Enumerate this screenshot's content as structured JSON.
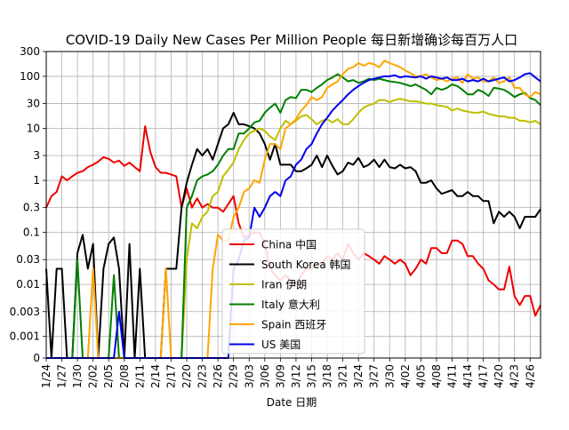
{
  "chart_data": {
    "type": "line",
    "title": "COVID-19 Daily New Cases Per Million People 每日新增确诊每百万人口",
    "xlabel": "Date 日期",
    "ylabel": "",
    "y_scale": "log (symlog near 0)",
    "ylim": [
      0,
      300
    ],
    "y_ticks": [
      0,
      0.001,
      0.003,
      0.01,
      0.03,
      0.1,
      0.3,
      1,
      3,
      10,
      30,
      100,
      300
    ],
    "y_tick_labels": [
      "0",
      "0.001",
      "0.003",
      "0.01",
      "0.03",
      "0.1",
      "0.3",
      "1",
      "3",
      "10",
      "30",
      "100",
      "300"
    ],
    "x_start": "1/24",
    "x_end": "4/28",
    "x_ticks": [
      "1/24",
      "1/27",
      "1/30",
      "2/02",
      "2/05",
      "2/08",
      "2/11",
      "2/14",
      "2/17",
      "2/20",
      "2/23",
      "2/26",
      "2/29",
      "3/03",
      "3/06",
      "3/09",
      "3/12",
      "3/15",
      "3/18",
      "3/21",
      "3/24",
      "3/27",
      "3/30",
      "4/02",
      "4/05",
      "4/08",
      "4/11",
      "4/14",
      "4/17",
      "4/20",
      "4/23",
      "4/26"
    ],
    "grid": true,
    "legend_position": "lower-center",
    "series": [
      {
        "name": "China 中国",
        "color": "#ee0000",
        "values": [
          0.3,
          0.5,
          0.6,
          1.2,
          1.0,
          1.2,
          1.4,
          1.5,
          1.8,
          2.0,
          2.3,
          2.8,
          2.6,
          2.2,
          2.4,
          1.9,
          2.2,
          1.8,
          1.5,
          11,
          3.5,
          1.8,
          1.4,
          1.4,
          1.3,
          1.2,
          0.3,
          0.7,
          0.3,
          0.45,
          0.3,
          0.35,
          0.3,
          0.3,
          0.25,
          0.35,
          0.5,
          0.15,
          0.08,
          0.09,
          0.1,
          0.1,
          0.06,
          0.02,
          0.015,
          0.012,
          0.015,
          0.012,
          0.01,
          0.015,
          0.02,
          0.02,
          0.025,
          0.025,
          0.035,
          0.03,
          0.04,
          0.03,
          0.06,
          0.04,
          0.03,
          0.04,
          0.035,
          0.03,
          0.025,
          0.035,
          0.03,
          0.025,
          0.03,
          0.025,
          0.015,
          0.02,
          0.03,
          0.025,
          0.05,
          0.05,
          0.04,
          0.04,
          0.07,
          0.07,
          0.06,
          0.035,
          0.035,
          0.025,
          0.02,
          0.012,
          0.01,
          0.008,
          0.008,
          0.022,
          0.006,
          0.004,
          0.006,
          0.006,
          0.0025,
          0.004
        ]
      },
      {
        "name": "South Korea 韩国",
        "color": "#000000",
        "values": [
          0.02,
          0,
          0.02,
          0.02,
          0,
          0,
          0.04,
          0.09,
          0.02,
          0.06,
          0,
          0.02,
          0.06,
          0.08,
          0.02,
          0,
          0.06,
          0,
          0.02,
          0,
          0,
          0,
          0,
          0.02,
          0.02,
          0.02,
          0.3,
          0.9,
          2,
          4,
          3,
          4,
          2.5,
          5,
          10,
          12,
          20,
          12,
          12,
          11,
          10,
          8,
          5,
          2.5,
          5,
          2,
          2,
          2,
          1.5,
          1.5,
          1.7,
          2,
          3,
          1.8,
          3,
          1.9,
          1.3,
          1.5,
          2.2,
          2,
          2.7,
          1.8,
          2,
          2.5,
          1.8,
          2.5,
          1.8,
          1.7,
          2,
          1.7,
          1.8,
          1.5,
          0.9,
          0.9,
          1,
          0.7,
          0.55,
          0.6,
          0.65,
          0.5,
          0.5,
          0.6,
          0.5,
          0.5,
          0.4,
          0.4,
          0.15,
          0.25,
          0.2,
          0.25,
          0.2,
          0.12,
          0.2,
          0.2,
          0.2,
          0.28
        ]
      },
      {
        "name": "Iran 伊朗",
        "color": "#bfbf00",
        "values": [
          0,
          0,
          0,
          0,
          0,
          0,
          0,
          0,
          0,
          0,
          0,
          0,
          0,
          0,
          0,
          0,
          0,
          0,
          0,
          0,
          0,
          0,
          0,
          0,
          0,
          0,
          0,
          0.03,
          0.15,
          0.12,
          0.2,
          0.25,
          0.5,
          0.6,
          1.2,
          1.6,
          2.2,
          4,
          6,
          8,
          9,
          10,
          9,
          7,
          6,
          10,
          14,
          12,
          14,
          17,
          18,
          15,
          12,
          14,
          15,
          13,
          15,
          12,
          12,
          15,
          20,
          25,
          28,
          30,
          35,
          35,
          32,
          35,
          37,
          35,
          33,
          33,
          32,
          30,
          30,
          28,
          27,
          26,
          22,
          24,
          22,
          21,
          20,
          20,
          21,
          19,
          18,
          17,
          17,
          16,
          16,
          14,
          14,
          13,
          14,
          12
        ]
      },
      {
        "name": "Italy 意大利",
        "color": "#008000",
        "values": [
          0,
          0,
          0,
          0,
          0,
          0,
          0.03,
          0,
          0,
          0,
          0,
          0,
          0,
          0.015,
          0,
          0,
          0,
          0,
          0,
          0,
          0,
          0,
          0,
          0,
          0,
          0,
          0,
          0.3,
          0.5,
          1,
          1.2,
          1.3,
          1.5,
          2,
          3,
          4,
          4,
          8,
          8,
          10,
          13,
          14,
          20,
          25,
          30,
          20,
          35,
          40,
          38,
          55,
          55,
          50,
          60,
          70,
          85,
          95,
          110,
          95,
          80,
          85,
          75,
          80,
          90,
          85,
          90,
          85,
          80,
          78,
          75,
          70,
          65,
          70,
          62,
          55,
          45,
          60,
          55,
          60,
          70,
          65,
          55,
          45,
          45,
          55,
          50,
          42,
          60,
          58,
          55,
          48,
          40,
          45,
          48,
          38,
          35,
          28
        ]
      },
      {
        "name": "Spain 西班牙",
        "color": "#ffa500",
        "values": [
          0,
          0,
          0,
          0,
          0,
          0,
          0,
          0,
          0,
          0.02,
          0,
          0,
          0,
          0,
          0,
          0,
          0,
          0,
          0,
          0,
          0,
          0,
          0,
          0.02,
          0,
          0,
          0,
          0,
          0,
          0,
          0,
          0,
          0.02,
          0.09,
          0.07,
          0.07,
          0.2,
          0.3,
          0.6,
          0.7,
          1,
          0.9,
          2.5,
          5,
          5,
          4,
          10,
          12,
          15,
          22,
          28,
          40,
          35,
          40,
          60,
          70,
          80,
          110,
          140,
          150,
          180,
          160,
          180,
          170,
          150,
          200,
          180,
          165,
          150,
          130,
          115,
          100,
          100,
          110,
          95,
          85,
          90,
          80,
          90,
          95,
          75,
          110,
          90,
          95,
          80,
          80,
          95,
          75,
          80,
          95,
          60,
          60,
          45,
          40,
          50,
          45
        ]
      },
      {
        "name": "US 美国",
        "color": "#0000ee",
        "values": [
          0,
          0,
          0,
          0,
          0,
          0,
          0,
          0,
          0,
          0,
          0,
          0,
          0,
          0,
          0.003,
          0,
          0,
          0,
          0,
          0,
          0,
          0,
          0,
          0,
          0,
          0,
          0,
          0,
          0,
          0,
          0,
          0,
          0,
          0,
          0,
          0,
          0.02,
          0.03,
          0.07,
          0.08,
          0.3,
          0.2,
          0.3,
          0.5,
          0.6,
          0.5,
          1,
          1.2,
          2,
          2.5,
          4,
          5,
          8,
          12,
          16,
          22,
          28,
          35,
          45,
          55,
          65,
          75,
          85,
          90,
          95,
          100,
          100,
          105,
          95,
          100,
          98,
          95,
          100,
          90,
          100,
          95,
          90,
          95,
          85,
          85,
          90,
          80,
          85,
          80,
          90,
          80,
          85,
          90,
          95,
          80,
          85,
          95,
          110,
          115,
          95,
          80
        ]
      }
    ]
  }
}
